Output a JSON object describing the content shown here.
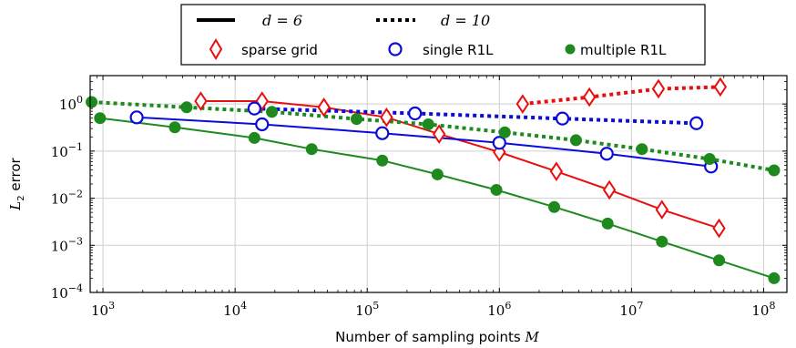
{
  "chart_data": {
    "type": "line",
    "xscale": "log",
    "yscale": "log",
    "xlim": [
      800,
      150000000
    ],
    "ylim": [
      0.0001,
      4
    ],
    "grid": true,
    "legend_position": "top-center",
    "xlabel_text": "Number of sampling points ",
    "xlabel_var": "M",
    "ylabel_base": "L",
    "ylabel_sub": "2",
    "ylabel_rest": " error",
    "x_ticks": [
      {
        "base": "10",
        "exp": "3",
        "value": 1000
      },
      {
        "base": "10",
        "exp": "4",
        "value": 10000
      },
      {
        "base": "10",
        "exp": "5",
        "value": 100000
      },
      {
        "base": "10",
        "exp": "6",
        "value": 1000000
      },
      {
        "base": "10",
        "exp": "7",
        "value": 10000000
      },
      {
        "base": "10",
        "exp": "8",
        "value": 100000000
      }
    ],
    "y_ticks": [
      {
        "base": "10",
        "exp": "0",
        "value": 1
      },
      {
        "base": "10",
        "exp": "−1",
        "value": 0.1
      },
      {
        "base": "10",
        "exp": "−2",
        "value": 0.01
      },
      {
        "base": "10",
        "exp": "−3",
        "value": 0.001
      },
      {
        "base": "10",
        "exp": "−4",
        "value": 0.0001
      }
    ],
    "legend": {
      "dims": [
        {
          "label": "d = 6",
          "style": "solid"
        },
        {
          "label": "d = 10",
          "style": "dotted"
        }
      ],
      "methods": [
        {
          "label": "sparse grid",
          "marker": "diamond",
          "color": "#e8100e"
        },
        {
          "label": "single R1L",
          "marker": "circle-open",
          "color": "#0b0bdc"
        },
        {
          "label": "multiple R1L",
          "marker": "circle-filled",
          "color": "#1e8a1e"
        }
      ]
    },
    "series": [
      {
        "method": "sparse grid",
        "d": 6,
        "style": "solid",
        "color": "#e8100e",
        "marker": "diamond",
        "x": [
          5500,
          16000,
          47000,
          140000,
          350000,
          1000000,
          2700000,
          6800000,
          17000000,
          46000000
        ],
        "y": [
          1.15,
          1.15,
          0.85,
          0.52,
          0.23,
          0.095,
          0.037,
          0.015,
          0.0057,
          0.0023
        ]
      },
      {
        "method": "sparse grid",
        "d": 10,
        "style": "dotted",
        "color": "#e8100e",
        "marker": "diamond",
        "x": [
          1500000,
          4800000,
          16000000,
          47000000
        ],
        "y": [
          1.0,
          1.4,
          2.1,
          2.3
        ]
      },
      {
        "method": "single R1L",
        "d": 6,
        "style": "solid",
        "color": "#0b0bdc",
        "marker": "circle-open",
        "x": [
          1800,
          16000,
          130000,
          1000000,
          6500000,
          40000000
        ],
        "y": [
          0.52,
          0.37,
          0.24,
          0.15,
          0.088,
          0.047
        ]
      },
      {
        "method": "single R1L",
        "d": 10,
        "style": "dotted",
        "color": "#0b0bdc",
        "marker": "circle-open",
        "x": [
          14000,
          230000,
          3000000,
          31000000
        ],
        "y": [
          0.8,
          0.63,
          0.49,
          0.39
        ]
      },
      {
        "method": "multiple R1L",
        "d": 6,
        "style": "solid",
        "color": "#1e8a1e",
        "marker": "circle-filled",
        "x": [
          950,
          3500,
          14000,
          38000,
          130000,
          340000,
          950000,
          2600000,
          6600000,
          17000000,
          46000000,
          120000000
        ],
        "y": [
          0.5,
          0.32,
          0.19,
          0.11,
          0.063,
          0.032,
          0.015,
          0.0065,
          0.0029,
          0.0012,
          0.00048,
          0.0002
        ]
      },
      {
        "method": "multiple R1L",
        "d": 10,
        "style": "dotted",
        "color": "#1e8a1e",
        "marker": "circle-filled",
        "x": [
          820,
          4300,
          19000,
          83000,
          290000,
          1100000,
          3800000,
          12000000,
          39000000,
          120000000
        ],
        "y": [
          1.1,
          0.85,
          0.68,
          0.48,
          0.37,
          0.25,
          0.17,
          0.11,
          0.068,
          0.039
        ]
      }
    ]
  }
}
